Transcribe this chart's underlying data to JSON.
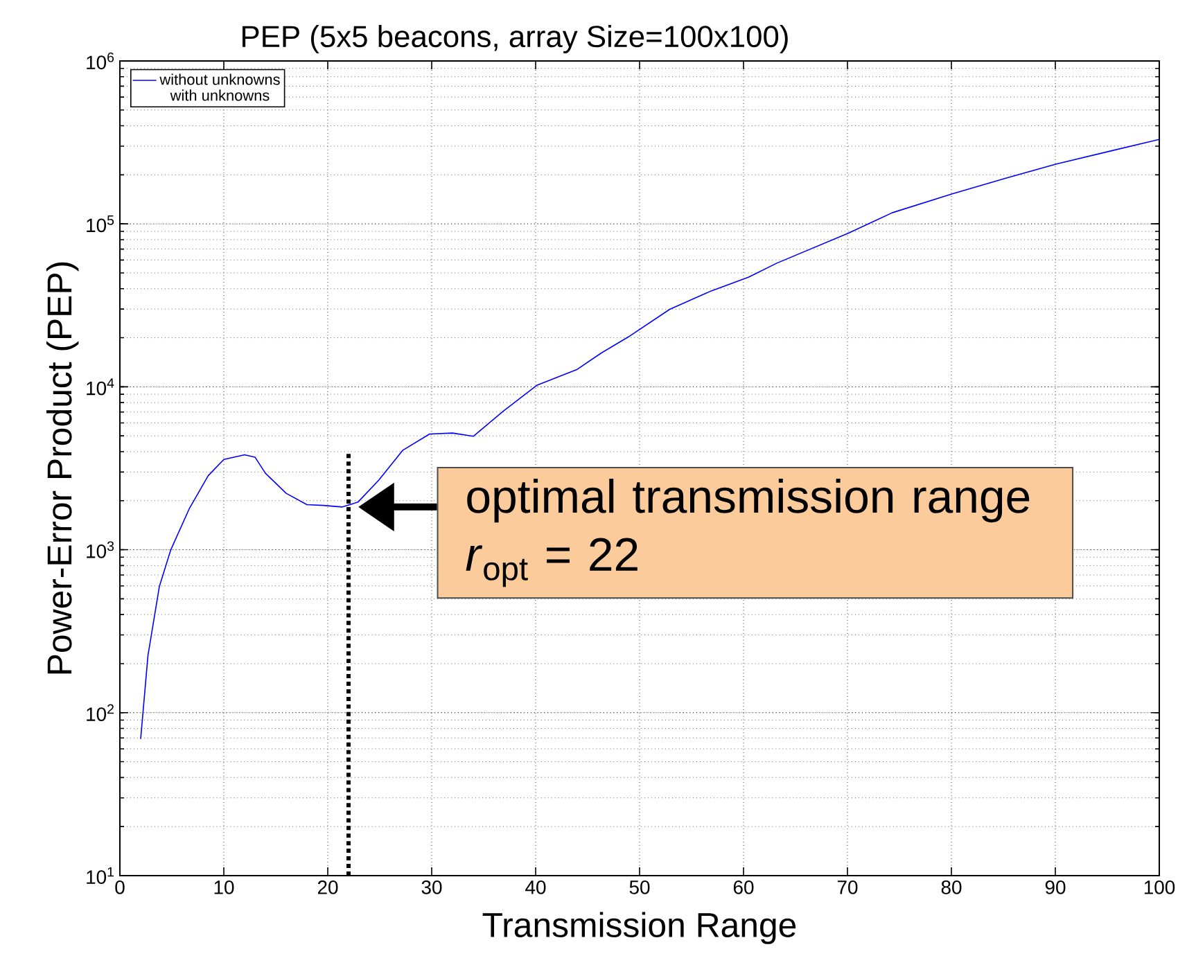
{
  "chart_data": {
    "type": "line",
    "title": "PEP (5x5 beacons, array Size=100x100)",
    "xlabel": "Transmission Range",
    "ylabel": "Power-Error Product (PEP)",
    "log": "y",
    "grid": true,
    "legend": "top left",
    "line_style": "solid",
    "marker": "none",
    "xlim": [
      0,
      100
    ],
    "xticks": [
      0,
      10,
      20,
      30,
      40,
      50,
      60,
      70,
      80,
      90,
      100
    ],
    "ylim": [
      10,
      1000000
    ],
    "yticks": [
      {
        "value": 10,
        "label": "10$^{1}$"
      },
      {
        "value": 100,
        "label": "10$^{2}$"
      },
      {
        "value": 1000,
        "label": "10$^{3}$"
      },
      {
        "value": 10000,
        "label": "10$^{4}$"
      },
      {
        "value": 100000,
        "label": "10$^{5}$"
      },
      {
        "value": 1000000,
        "label": "10$^{6}$"
      }
    ],
    "series": [
      {
        "name": "without unknowns",
        "color": "#0000ff",
        "x": [
          2,
          2.7,
          3.8,
          4.9,
          6.7,
          8.5,
          10,
          12,
          13,
          14,
          16,
          18,
          19.6,
          21.4,
          22.9,
          24.9,
          27.2,
          29.8,
          32,
          34,
          36.9,
          40.1,
          44,
          46.3,
          48.9,
          52.9,
          56.9,
          60.5,
          63.2,
          70.1,
          74.3,
          80.1,
          85.4,
          90.1,
          95.2,
          100
        ],
        "values": [
          69,
          224,
          596,
          1000,
          1800,
          2850,
          3580,
          3830,
          3700,
          2950,
          2220,
          1890,
          1870,
          1830,
          1960,
          2670,
          4070,
          5130,
          5200,
          4970,
          7100,
          10200,
          12800,
          16100,
          20200,
          29900,
          38800,
          47100,
          57400,
          87700,
          117000,
          153000,
          192000,
          233000,
          279000,
          330000
        ]
      },
      {
        "name": "with unknowns"
      }
    ],
    "ref_lines": [
      {
        "axis": "x",
        "value": 22,
        "line_style": "dotted",
        "color": "#000000"
      }
    ],
    "annotations": [
      {
        "text": "optimal transmission range *r*$_{opt}$ = 22",
        "x": 22,
        "y": 1830
      }
    ]
  }
}
